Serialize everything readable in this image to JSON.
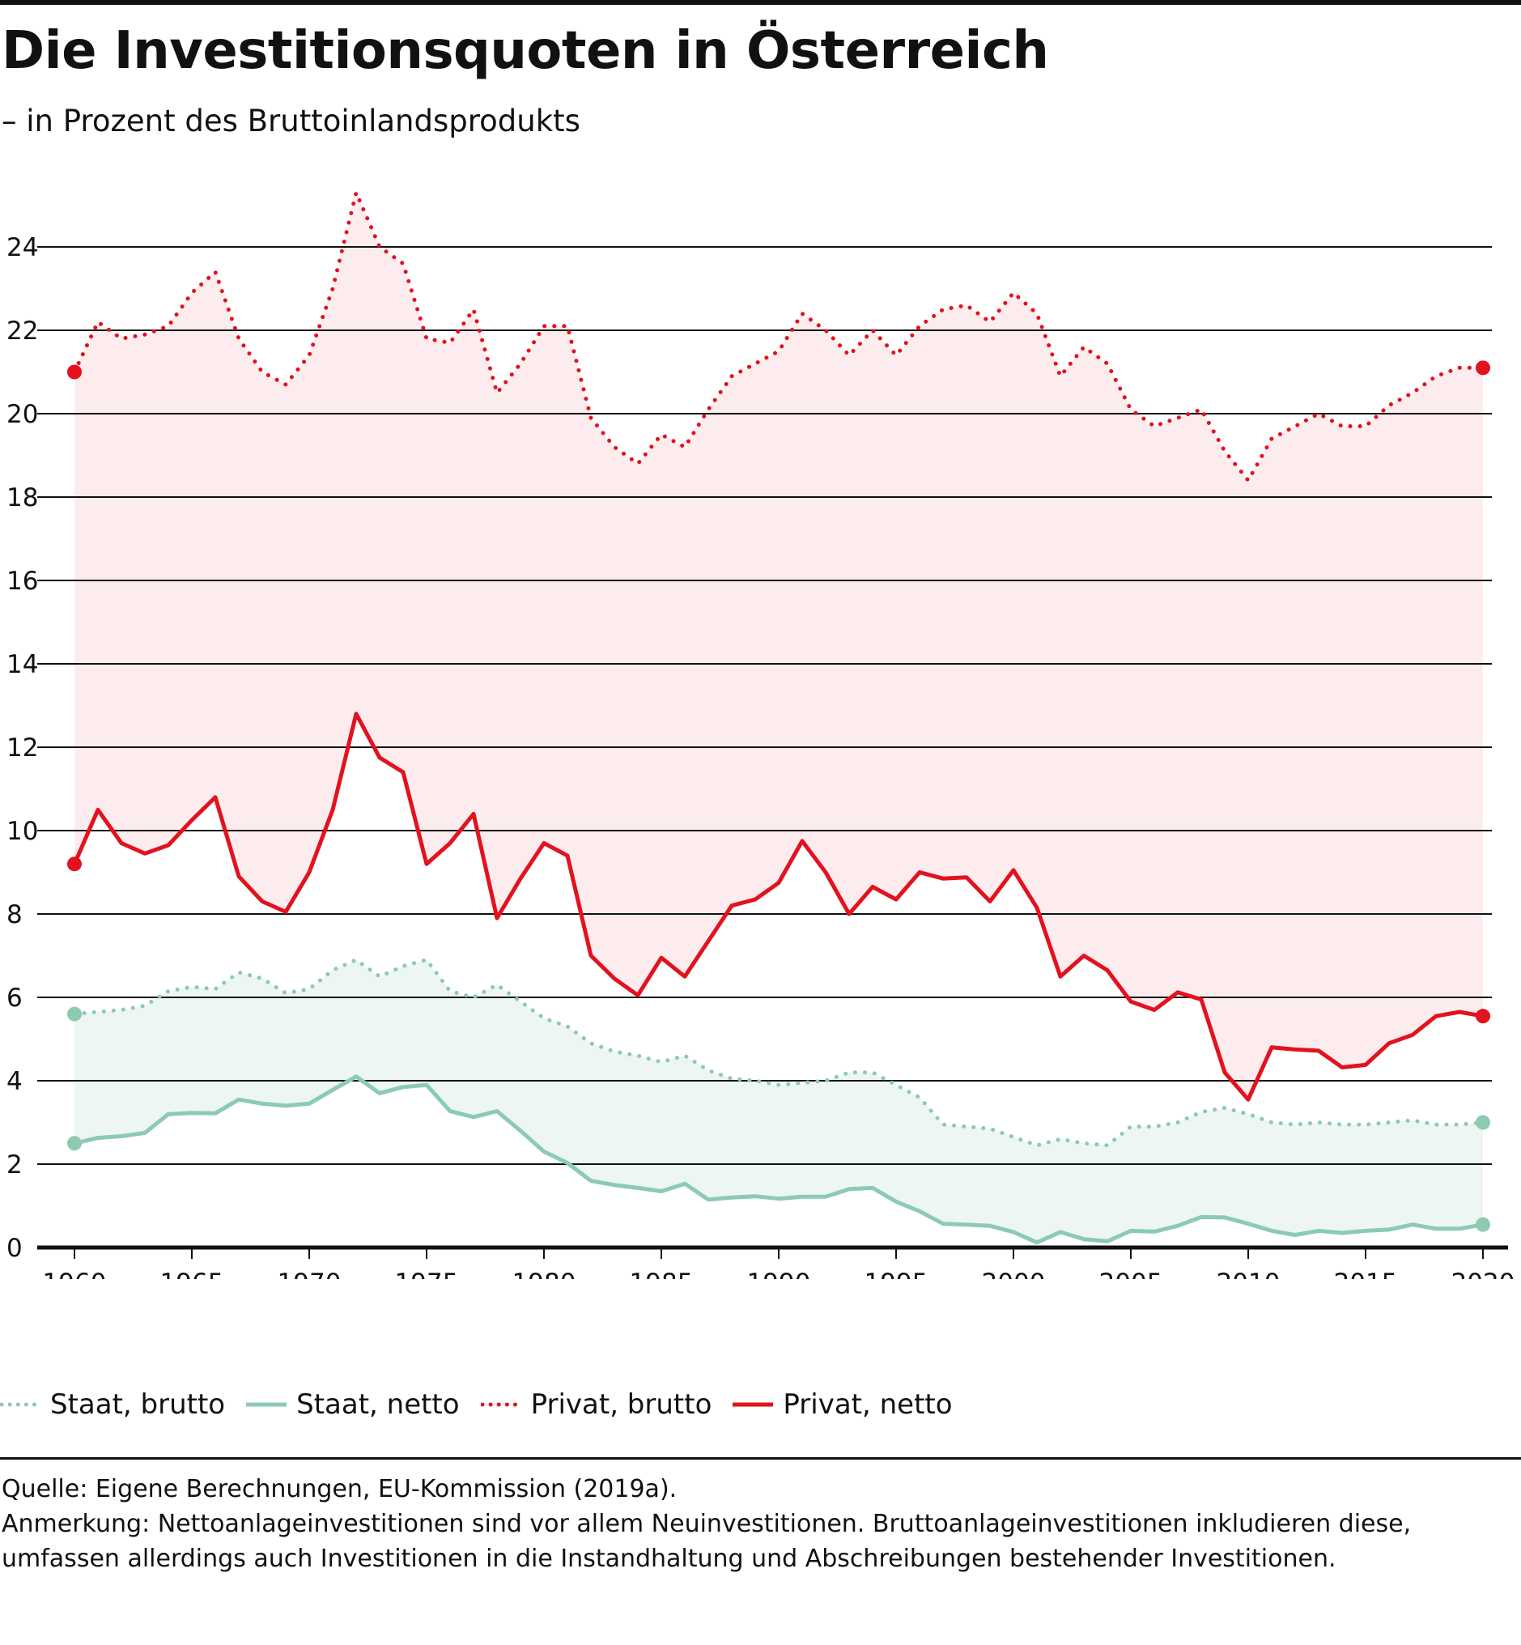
{
  "title": "Die Investitionsquoten in Österreich",
  "subtitle": "– in Prozent des Bruttoinlandsprodukts",
  "colors": {
    "staat": "#8ccbb0",
    "staat_fill": "#edf6f2",
    "privat": "#e2121e",
    "privat_fill": "#fdecee",
    "axis": "#111111"
  },
  "chart_data": {
    "type": "line",
    "title": "Die Investitionsquoten in Österreich",
    "subtitle": "– in Prozent des Bruttoinlandsprodukts",
    "xlabel": "",
    "ylabel": "",
    "xlim": [
      1960,
      2020
    ],
    "ylim": [
      0,
      25
    ],
    "yticks": [
      0,
      2,
      4,
      6,
      8,
      10,
      12,
      14,
      16,
      18,
      20,
      22,
      24
    ],
    "xticks": [
      1960,
      1965,
      1970,
      1975,
      1980,
      1985,
      1990,
      1995,
      2000,
      2005,
      2010,
      2015,
      2020
    ],
    "grid": "horizontal",
    "legend_position": "bottom",
    "x": [
      1960,
      1961,
      1962,
      1963,
      1964,
      1965,
      1966,
      1967,
      1968,
      1969,
      1970,
      1971,
      1972,
      1973,
      1974,
      1975,
      1976,
      1977,
      1978,
      1979,
      1980,
      1981,
      1982,
      1983,
      1984,
      1985,
      1986,
      1987,
      1988,
      1989,
      1990,
      1991,
      1992,
      1993,
      1994,
      1995,
      1996,
      1997,
      1998,
      1999,
      2000,
      2001,
      2002,
      2003,
      2004,
      2005,
      2006,
      2007,
      2008,
      2009,
      2010,
      2011,
      2012,
      2013,
      2014,
      2015,
      2016,
      2017,
      2018,
      2019,
      2020
    ],
    "series": [
      {
        "name": "Staat, brutto",
        "style": "dotted",
        "color": "#8ccbb0",
        "values": [
          5.6,
          5.65,
          5.7,
          5.8,
          6.15,
          6.25,
          6.2,
          6.6,
          6.45,
          6.1,
          6.2,
          6.65,
          6.9,
          6.5,
          6.75,
          6.9,
          6.15,
          6.0,
          6.3,
          5.9,
          5.5,
          5.3,
          4.9,
          4.7,
          4.6,
          4.45,
          4.6,
          4.25,
          4.05,
          4.0,
          3.9,
          3.95,
          4.0,
          4.2,
          4.2,
          3.9,
          3.6,
          2.95,
          2.9,
          2.85,
          2.65,
          2.45,
          2.6,
          2.5,
          2.45,
          2.9,
          2.9,
          3.0,
          3.25,
          3.35,
          3.2,
          3.0,
          2.95,
          3.0,
          2.95,
          2.95,
          3.0,
          3.05,
          2.95,
          2.95,
          3.0
        ]
      },
      {
        "name": "Staat, netto",
        "style": "solid",
        "color": "#8ccbb0",
        "values": [
          2.5,
          2.63,
          2.67,
          2.75,
          3.2,
          3.23,
          3.22,
          3.55,
          3.45,
          3.4,
          3.45,
          3.78,
          4.1,
          3.7,
          3.85,
          3.9,
          3.27,
          3.13,
          3.27,
          2.8,
          2.3,
          2.03,
          1.6,
          1.5,
          1.43,
          1.35,
          1.53,
          1.15,
          1.2,
          1.23,
          1.17,
          1.22,
          1.22,
          1.4,
          1.43,
          1.1,
          0.87,
          0.57,
          0.55,
          0.52,
          0.37,
          0.12,
          0.37,
          0.2,
          0.15,
          0.4,
          0.38,
          0.52,
          0.73,
          0.72,
          0.57,
          0.4,
          0.3,
          0.4,
          0.35,
          0.4,
          0.43,
          0.55,
          0.45,
          0.45,
          0.55
        ]
      },
      {
        "name": "Privat, brutto",
        "style": "dotted",
        "color": "#e2121e",
        "values": [
          21.0,
          22.2,
          21.8,
          21.9,
          22.1,
          22.9,
          23.4,
          21.8,
          21.0,
          20.7,
          21.4,
          23.0,
          25.3,
          24.0,
          23.6,
          21.8,
          21.7,
          22.5,
          20.5,
          21.2,
          22.1,
          22.1,
          19.9,
          19.2,
          18.8,
          19.5,
          19.2,
          20.1,
          20.9,
          21.2,
          21.5,
          22.4,
          22.0,
          21.4,
          22.0,
          21.4,
          22.1,
          22.5,
          22.6,
          22.2,
          22.9,
          22.4,
          20.9,
          21.6,
          21.2,
          20.1,
          19.7,
          19.9,
          20.1,
          19.1,
          18.4,
          19.4,
          19.7,
          20.0,
          19.7,
          19.7,
          20.2,
          20.5,
          20.9,
          21.1,
          21.1
        ]
      },
      {
        "name": "Privat, netto",
        "style": "solid",
        "color": "#e2121e",
        "values": [
          9.2,
          10.5,
          9.7,
          9.45,
          9.65,
          10.25,
          10.8,
          8.9,
          8.3,
          8.05,
          9.0,
          10.5,
          12.8,
          11.75,
          11.4,
          9.2,
          9.7,
          10.4,
          7.9,
          8.85,
          9.7,
          9.4,
          7.0,
          6.45,
          6.05,
          6.95,
          6.5,
          7.35,
          8.2,
          8.35,
          8.75,
          9.75,
          9.0,
          8.0,
          8.65,
          8.35,
          9.0,
          8.85,
          8.88,
          8.3,
          9.05,
          8.15,
          6.5,
          7.0,
          6.65,
          5.9,
          5.7,
          6.12,
          5.95,
          4.2,
          3.55,
          4.8,
          4.75,
          4.72,
          4.32,
          4.38,
          4.9,
          5.1,
          5.55,
          5.65,
          5.55
        ]
      }
    ]
  },
  "source_label": "Quelle: Eigene Berechnungen, EU-Kommission (2019a).",
  "note_label": "Anmerkung: Nettoanlageinvestitionen sind vor allem Neuinvestitionen. Bruttoanlageinvestitionen inkludieren diese, umfassen allerdings auch Investitionen in die Instandhaltung und Abschreibungen bestehender Investitionen."
}
